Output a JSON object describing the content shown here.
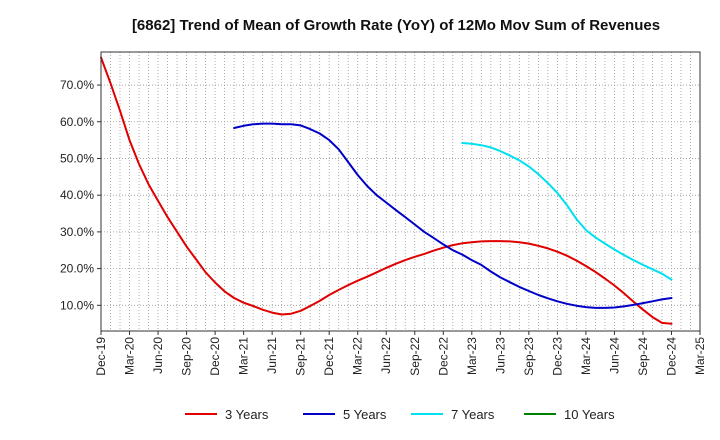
{
  "chart_data": {
    "type": "line",
    "title": "[6862]  Trend of Mean of Growth Rate (YoY) of 12Mo Mov Sum of Revenues",
    "xlabel": "",
    "ylabel": "",
    "x_tick_labels": [
      "Dec-19",
      "Mar-20",
      "Jun-20",
      "Sep-20",
      "Dec-20",
      "Mar-21",
      "Jun-21",
      "Sep-21",
      "Dec-21",
      "Mar-22",
      "Jun-22",
      "Sep-22",
      "Dec-22",
      "Mar-23",
      "Jun-23",
      "Sep-23",
      "Dec-23",
      "Mar-24",
      "Jun-24",
      "Sep-24",
      "Dec-24",
      "Mar-25"
    ],
    "y_tick_labels": [
      "10.0%",
      "20.0%",
      "30.0%",
      "40.0%",
      "50.0%",
      "60.0%",
      "70.0%"
    ],
    "y_ticks": [
      10,
      20,
      30,
      40,
      50,
      60,
      70
    ],
    "ylim": [
      3,
      79
    ],
    "x_range_months": [
      0,
      63
    ],
    "grid": true,
    "legend_position": "bottom",
    "series": [
      {
        "name": "3 Years",
        "color": "#e00000",
        "x": [
          0,
          1,
          2,
          3,
          4,
          5,
          6,
          7,
          8,
          9,
          10,
          11,
          12,
          13,
          14,
          15,
          16,
          17,
          18,
          19,
          20,
          21,
          22,
          23,
          24,
          25,
          26,
          27,
          28,
          29,
          30,
          31,
          32,
          33,
          34,
          35,
          36,
          37,
          38,
          39,
          40,
          41,
          42,
          43,
          44,
          45,
          46,
          47,
          48,
          49,
          50,
          51,
          52,
          53,
          54,
          55,
          56,
          57,
          58,
          59,
          60
        ],
        "values": [
          77.5,
          70.5,
          63.0,
          55.0,
          48.5,
          43.0,
          38.5,
          34.0,
          30.0,
          26.0,
          22.5,
          19.0,
          16.2,
          13.8,
          12.0,
          10.7,
          9.8,
          8.8,
          8.0,
          7.5,
          7.7,
          8.5,
          9.8,
          11.2,
          12.8,
          14.2,
          15.5,
          16.7,
          17.8,
          19.0,
          20.2,
          21.3,
          22.3,
          23.2,
          24.0,
          24.9,
          25.7,
          26.4,
          26.9,
          27.2,
          27.4,
          27.5,
          27.5,
          27.4,
          27.2,
          26.8,
          26.2,
          25.5,
          24.6,
          23.5,
          22.2,
          20.7,
          19.1,
          17.3,
          15.4,
          13.3,
          11.0,
          8.8,
          6.8,
          5.2,
          5.0
        ]
      },
      {
        "name": "5 Years",
        "color": "#0000c8",
        "x": [
          14,
          15,
          16,
          17,
          18,
          19,
          20,
          21,
          22,
          23,
          24,
          25,
          26,
          27,
          28,
          29,
          30,
          31,
          32,
          33,
          34,
          35,
          36,
          37,
          38,
          39,
          40,
          41,
          42,
          43,
          44,
          45,
          46,
          47,
          48,
          49,
          50,
          51,
          52,
          53,
          54,
          55,
          56,
          57,
          58,
          59,
          60
        ],
        "values": [
          58.3,
          58.9,
          59.3,
          59.5,
          59.5,
          59.3,
          59.3,
          59.0,
          58.0,
          56.8,
          55.0,
          52.5,
          49.0,
          45.5,
          42.5,
          40.0,
          38.0,
          36.0,
          34.0,
          32.0,
          30.0,
          28.3,
          26.6,
          25.0,
          23.8,
          22.3,
          21.0,
          19.2,
          17.6,
          16.3,
          15.0,
          13.9,
          12.8,
          11.9,
          11.1,
          10.4,
          9.9,
          9.5,
          9.3,
          9.3,
          9.4,
          9.7,
          10.1,
          10.6,
          11.1,
          11.6,
          12.0
        ]
      },
      {
        "name": "7 Years",
        "color": "#00e0f0",
        "x": [
          38,
          39,
          40,
          41,
          42,
          43,
          44,
          45,
          46,
          47,
          48,
          49,
          50,
          51,
          52,
          53,
          54,
          55,
          56,
          57,
          58,
          59,
          60
        ],
        "values": [
          54.2,
          54.0,
          53.6,
          53.0,
          52.0,
          50.8,
          49.5,
          47.8,
          45.7,
          43.3,
          40.6,
          37.3,
          33.5,
          30.5,
          28.5,
          26.8,
          25.2,
          23.7,
          22.3,
          21.0,
          19.8,
          18.6,
          17.0
        ]
      },
      {
        "name": "10 Years",
        "color": "#008000",
        "x": [],
        "values": []
      }
    ]
  }
}
